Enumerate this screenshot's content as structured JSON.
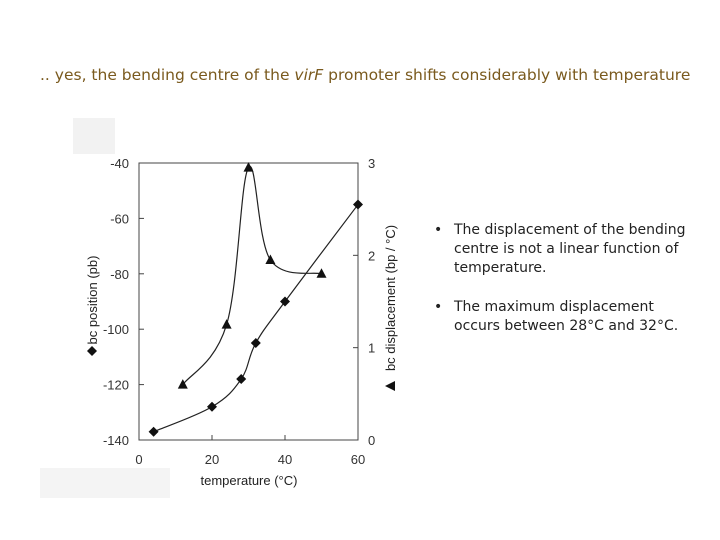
{
  "headline": {
    "prefix": ".. yes, the bending centre of the ",
    "emphasis": "virF",
    "suffix": " promoter shifts considerably with temperature",
    "color": "#7a5a1e"
  },
  "bullets": [
    "The displacement of the bending centre is not a linear function of temperature.",
    "The maximum displacement occurs between 28°C and 32°C."
  ],
  "chart_data": {
    "type": "line",
    "xlabel": "temperature (°C)",
    "ylabel_left": "bc position (pb)",
    "ylabel_right": "bc displacement (bp / °C)",
    "xlim": [
      0,
      60
    ],
    "ylim_left": [
      -140,
      -40
    ],
    "ylim_right": [
      0,
      3
    ],
    "xticks": [
      0,
      20,
      40,
      60
    ],
    "yticks_left": [
      -40,
      -60,
      -80,
      -100,
      -120,
      -140
    ],
    "yticks_right": [
      0,
      1,
      2,
      3
    ],
    "series": [
      {
        "marker": "diamond",
        "axis": "left",
        "points": [
          [
            4,
            -137
          ],
          [
            20,
            -128
          ],
          [
            28,
            -118
          ],
          [
            32,
            -105
          ],
          [
            40,
            -90
          ],
          [
            60,
            -55
          ]
        ]
      },
      {
        "marker": "triangle",
        "axis": "right",
        "points": [
          [
            12,
            0.6
          ],
          [
            24,
            1.25
          ],
          [
            30,
            2.95
          ],
          [
            36,
            1.95
          ],
          [
            50,
            1.8
          ]
        ]
      }
    ]
  }
}
